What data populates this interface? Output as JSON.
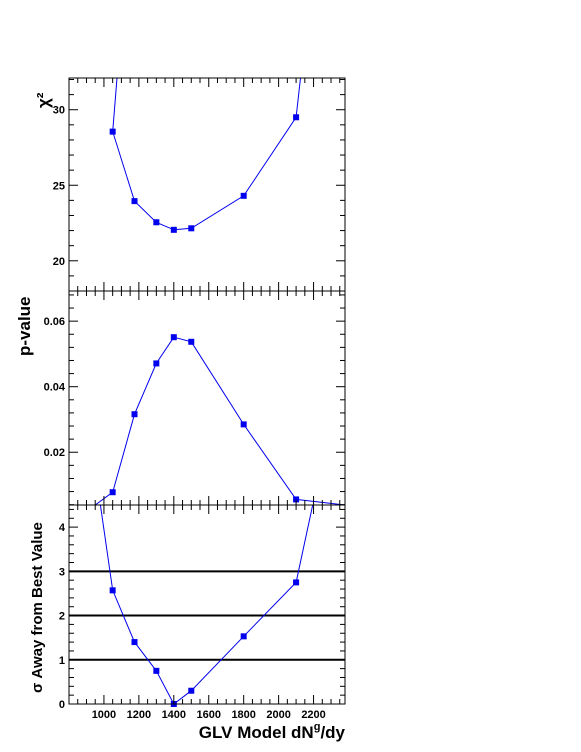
{
  "chart_data": [
    {
      "type": "line",
      "panel": "chi2",
      "ylabel": "χ²",
      "xlim": [
        800,
        2380
      ],
      "ylim": [
        18.0,
        32.1
      ],
      "yticks": [
        20,
        25,
        30
      ],
      "ytick_labels": [
        "20",
        "25",
        "30"
      ],
      "series": [
        {
          "x": [
            1050,
            1175,
            1300,
            1400,
            1500,
            1800,
            2100
          ],
          "y": [
            28.55,
            23.95,
            22.55,
            22.05,
            22.15,
            24.3,
            29.5
          ]
        }
      ],
      "curve": [
        [
          1075,
          32.1
        ],
        [
          1050,
          28.55
        ],
        [
          1175,
          23.95
        ],
        [
          1300,
          22.55
        ],
        [
          1400,
          22.05
        ],
        [
          1500,
          22.15
        ],
        [
          1800,
          24.3
        ],
        [
          2100,
          29.5
        ],
        [
          2125,
          32.1
        ]
      ]
    },
    {
      "type": "line",
      "panel": "pvalue",
      "ylabel": "p-value",
      "xlim": [
        800,
        2380
      ],
      "ylim": [
        0.0039,
        0.0692
      ],
      "yticks": [
        0.02,
        0.04,
        0.06
      ],
      "ytick_labels": [
        "0.02",
        "0.04",
        "0.06"
      ],
      "series": [
        {
          "x": [
            1050,
            1175,
            1300,
            1400,
            1500,
            1800,
            2100
          ],
          "y": [
            0.0078,
            0.0316,
            0.0471,
            0.0551,
            0.0537,
            0.0285,
            0.0056
          ]
        }
      ],
      "curve": [
        [
          950,
          0.0039
        ],
        [
          1050,
          0.0078
        ],
        [
          1175,
          0.0316
        ],
        [
          1300,
          0.0471
        ],
        [
          1400,
          0.0551
        ],
        [
          1500,
          0.0537
        ],
        [
          1800,
          0.0285
        ],
        [
          2100,
          0.0056
        ],
        [
          2380,
          0.0039
        ]
      ]
    },
    {
      "type": "line",
      "panel": "sigma",
      "ylabel": "σ Away from Best Value",
      "xlabel": "GLV Model dN",
      "xlabel_sup": "g",
      "xlabel_tail": "/dy",
      "xlim": [
        800,
        2380
      ],
      "ylim": [
        0,
        4.5
      ],
      "yticks": [
        0,
        1,
        2,
        3,
        4
      ],
      "ytick_labels": [
        "0",
        "1",
        "2",
        "3",
        "4"
      ],
      "xticks": [
        1000,
        1200,
        1400,
        1600,
        1800,
        2000,
        2200
      ],
      "xtick_labels": [
        "1000",
        "1200",
        "1400",
        "1600",
        "1800",
        "2000",
        "2200"
      ],
      "hlines": [
        1,
        2,
        3
      ],
      "series": [
        {
          "x": [
            1050,
            1175,
            1300,
            1400,
            1500,
            1800,
            2100
          ],
          "y": [
            2.57,
            1.4,
            0.75,
            0.0,
            0.3,
            1.53,
            2.75
          ]
        }
      ],
      "curve": [
        [
          980,
          4.5
        ],
        [
          1050,
          2.57
        ],
        [
          1175,
          1.4
        ],
        [
          1300,
          0.75
        ],
        [
          1400,
          0.0
        ],
        [
          1500,
          0.3
        ],
        [
          1800,
          1.53
        ],
        [
          2100,
          2.75
        ],
        [
          2195,
          4.5
        ]
      ]
    }
  ]
}
